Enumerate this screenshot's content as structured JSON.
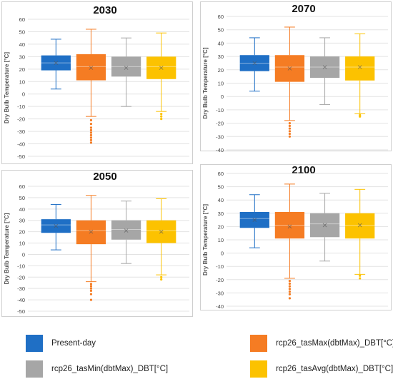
{
  "chart_data": [
    {
      "type": "box",
      "title": "2030",
      "ylabel": "Dry Bulb Temperature [°C]",
      "ylim": [
        -50,
        60
      ],
      "yticks": [
        60,
        50,
        40,
        30,
        20,
        10,
        0,
        -10,
        -20,
        -30,
        -40,
        -50
      ],
      "series": [
        {
          "name": "Present-day",
          "min": 4,
          "q1": 19,
          "median": 25,
          "q3": 31,
          "max": 44,
          "mean": 25,
          "outliers": []
        },
        {
          "name": "rcp26_tasMax(dbtMax)_DBT[°C]",
          "min": -18,
          "q1": 11,
          "median": 22,
          "q3": 32,
          "max": 52,
          "mean": 21,
          "outliers": [
            -21,
            -24,
            -27,
            -29,
            -31,
            -33,
            -35,
            -37,
            -39
          ]
        },
        {
          "name": "rcp26_tasMin(dbtMax)_DBT[°C]",
          "min": -10,
          "q1": 14,
          "median": 22,
          "q3": 30,
          "max": 45,
          "mean": 21,
          "outliers": []
        },
        {
          "name": "rcp26_tasAvg(dbtMax)_DBT[°C]",
          "min": -14,
          "q1": 12,
          "median": 22,
          "q3": 30,
          "max": 49,
          "mean": 21,
          "outliers": [
            -16,
            -18,
            -20
          ]
        }
      ]
    },
    {
      "type": "box",
      "title": "2070",
      "ylabel": "Dry Bulb Temperature [°C]",
      "ylim": [
        -40,
        60
      ],
      "yticks": [
        60,
        50,
        40,
        30,
        20,
        10,
        0,
        -10,
        -20,
        -30,
        -40
      ],
      "series": [
        {
          "name": "Present-day",
          "min": 4,
          "q1": 19,
          "median": 25,
          "q3": 31,
          "max": 44,
          "mean": 25,
          "outliers": []
        },
        {
          "name": "rcp26_tasMax(dbtMax)_DBT[°C]",
          "min": -18,
          "q1": 11,
          "median": 22,
          "q3": 31,
          "max": 52,
          "mean": 21,
          "outliers": [
            -20,
            -22,
            -24,
            -26,
            -28,
            -30
          ]
        },
        {
          "name": "rcp26_tasMin(dbtMax)_DBT[°C]",
          "min": -6,
          "q1": 14,
          "median": 22,
          "q3": 30,
          "max": 44,
          "mean": 22,
          "outliers": []
        },
        {
          "name": "rcp26_tasAvg(dbtMax)_DBT[°C]",
          "min": -13,
          "q1": 12,
          "median": 22,
          "q3": 30,
          "max": 47,
          "mean": 22,
          "outliers": [
            -14,
            -15
          ]
        }
      ]
    },
    {
      "type": "box",
      "title": "2050",
      "ylabel": "Dry Bulb Temperature [°C]",
      "ylim": [
        -50,
        60
      ],
      "yticks": [
        60,
        50,
        40,
        30,
        20,
        10,
        0,
        -10,
        -20,
        -30,
        -40,
        -50
      ],
      "series": [
        {
          "name": "Present-day",
          "min": 4,
          "q1": 19,
          "median": 26,
          "q3": 31,
          "max": 44,
          "mean": 25,
          "outliers": []
        },
        {
          "name": "rcp26_tasMax(dbtMax)_DBT[°C]",
          "min": -24,
          "q1": 9,
          "median": 21,
          "q3": 30,
          "max": 52,
          "mean": 20,
          "outliers": [
            -26,
            -28,
            -30,
            -32,
            -35,
            -40
          ]
        },
        {
          "name": "rcp26_tasMin(dbtMax)_DBT[°C]",
          "min": -8,
          "q1": 13,
          "median": 22,
          "q3": 30,
          "max": 47,
          "mean": 21,
          "outliers": []
        },
        {
          "name": "rcp26_tasAvg(dbtMax)_DBT[°C]",
          "min": -18,
          "q1": 10,
          "median": 21,
          "q3": 30,
          "max": 49,
          "mean": 20,
          "outliers": [
            -20,
            -22
          ]
        }
      ]
    },
    {
      "type": "box",
      "title": "2100",
      "ylabel": "Dry Bulb Temperature [°C]",
      "ylim": [
        -40,
        60
      ],
      "yticks": [
        60,
        50,
        40,
        30,
        20,
        10,
        0,
        -10,
        -20,
        -30,
        -40
      ],
      "series": [
        {
          "name": "Present-day",
          "min": 4,
          "q1": 19,
          "median": 26,
          "q3": 31,
          "max": 44,
          "mean": 25,
          "outliers": []
        },
        {
          "name": "rcp26_tasMax(dbtMax)_DBT[°C]",
          "min": -19,
          "q1": 11,
          "median": 21,
          "q3": 31,
          "max": 52,
          "mean": 20,
          "outliers": [
            -21,
            -23,
            -25,
            -27,
            -29,
            -31,
            -34
          ]
        },
        {
          "name": "rcp26_tasMin(dbtMax)_DBT[°C]",
          "min": -6,
          "q1": 12,
          "median": 22,
          "q3": 30,
          "max": 45,
          "mean": 21,
          "outliers": []
        },
        {
          "name": "rcp26_tasAvg(dbtMax)_DBT[°C]",
          "min": -16,
          "q1": 11,
          "median": 21,
          "q3": 30,
          "max": 48,
          "mean": 21,
          "outliers": [
            -17,
            -19
          ]
        }
      ]
    }
  ],
  "colors": {
    "Present-day": "#1f6fc5",
    "rcp26_tasMax(dbtMax)_DBT[°C]": "#f57c23",
    "rcp26_tasMin(dbtMax)_DBT[°C]": "#a6a6a6",
    "rcp26_tasAvg(dbtMax)_DBT[°C]": "#fcc200"
  },
  "legend": {
    "present": "Present-day",
    "tasmax": "rcp26_tasMax(dbtMax)_DBT[°C]",
    "tasmin": "rcp26_tasMin(dbtMax)_DBT[°C]",
    "tasavg": "rcp26_tasAvg(dbtMax)_DBT[°C]"
  }
}
